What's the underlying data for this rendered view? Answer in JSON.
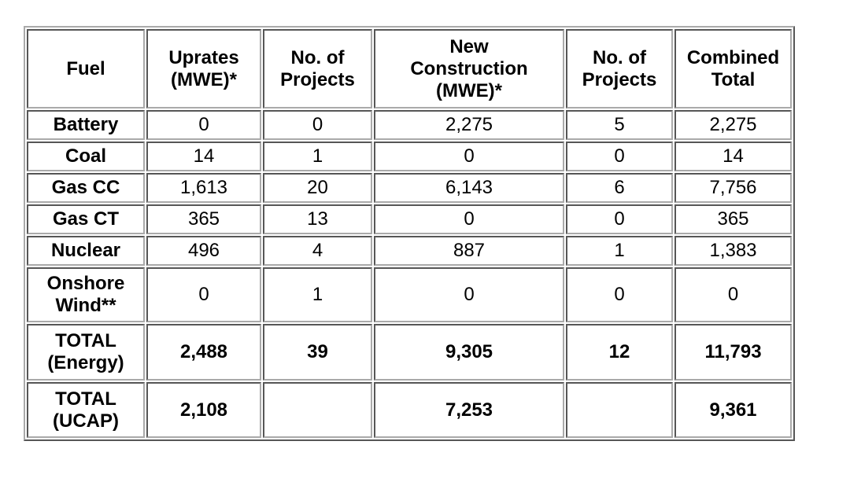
{
  "table": {
    "header": [
      [
        "Fuel"
      ],
      [
        "Uprates",
        "(MWE)*"
      ],
      [
        "No. of",
        "Projects"
      ],
      [
        "New",
        "Construction",
        "(MWE)*"
      ],
      [
        "No. of",
        "Projects"
      ],
      [
        "Combined",
        "Total"
      ]
    ],
    "rows": [
      [
        [
          "Battery"
        ],
        "0",
        "0",
        "2,275",
        "5",
        "2,275"
      ],
      [
        [
          "Coal"
        ],
        "14",
        "1",
        "0",
        "0",
        "14"
      ],
      [
        [
          "Gas CC"
        ],
        "1,613",
        "20",
        "6,143",
        "6",
        "7,756"
      ],
      [
        [
          "Gas CT"
        ],
        "365",
        "13",
        "0",
        "0",
        "365"
      ],
      [
        [
          "Nuclear"
        ],
        "496",
        "4",
        "887",
        "1",
        "1,383"
      ],
      [
        [
          "Onshore",
          "Wind**"
        ],
        "0",
        "1",
        "0",
        "0",
        "0"
      ],
      [
        [
          "TOTAL",
          "(Energy)"
        ],
        "2,488",
        "39",
        "9,305",
        "12",
        "11,793"
      ],
      [
        [
          "TOTAL",
          "(UCAP)"
        ],
        "2,108",
        null,
        "7,253",
        null,
        "9,361"
      ]
    ]
  }
}
